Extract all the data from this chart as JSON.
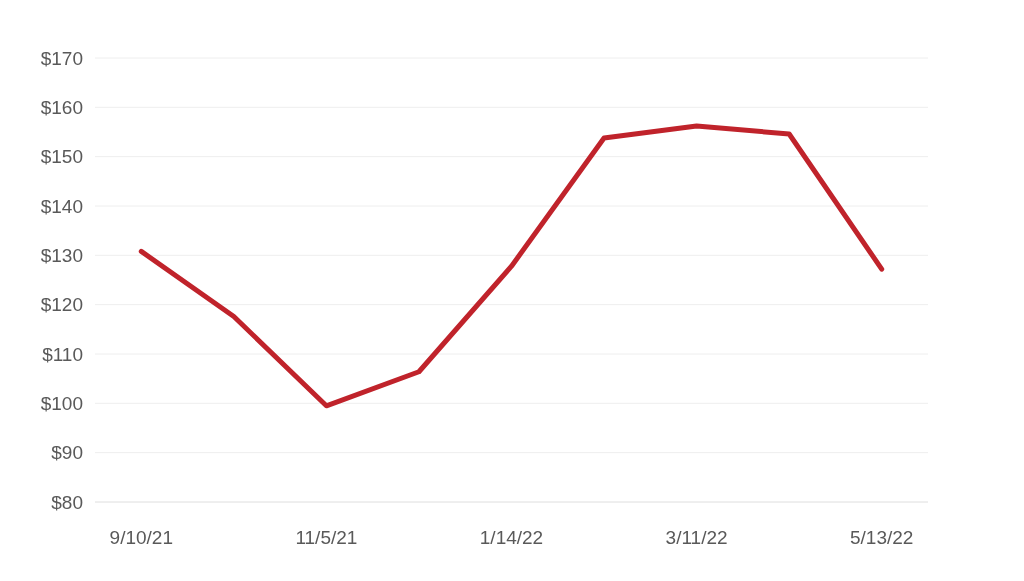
{
  "chart_data": {
    "type": "line",
    "categories": [
      "9/10/21",
      null,
      "11/5/21",
      null,
      "1/14/22",
      null,
      "3/11/22",
      null,
      "5/13/22"
    ],
    "series": [
      {
        "color": "#c0232b",
        "values": [
          130.8,
          117.6,
          99.5,
          106.4,
          127.8,
          153.8,
          156.2,
          154.6,
          127.2
        ]
      }
    ],
    "ylim": [
      80,
      170
    ],
    "yticks": [
      {
        "value": 80,
        "label": "$80"
      },
      {
        "value": 90,
        "label": "$90"
      },
      {
        "value": 100,
        "label": "$100"
      },
      {
        "value": 110,
        "label": "$110"
      },
      {
        "value": 120,
        "label": "$120"
      },
      {
        "value": 130,
        "label": "$130"
      },
      {
        "value": 140,
        "label": "$140"
      },
      {
        "value": 150,
        "label": "$150"
      },
      {
        "value": 160,
        "label": "$160"
      },
      {
        "value": 170,
        "label": "$170"
      }
    ],
    "grid": "y",
    "marker": "none",
    "line_style": "solid"
  }
}
